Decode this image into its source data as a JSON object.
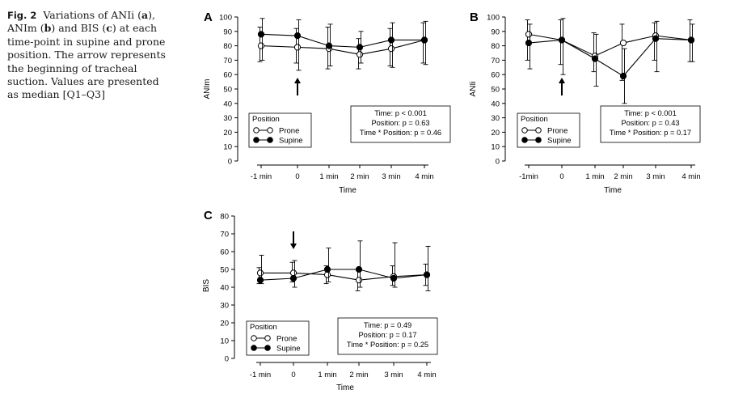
{
  "caption": {
    "fig_label": "Fig. 2",
    "part1": "Variations of ANIi (",
    "a": "a",
    "part2": "), ANIm (",
    "b": "b",
    "part3": ") and BIS (",
    "c": "c",
    "part4": ") at each time-point in supine and prone position. The arrow represents the beginning of tracheal suction. Values are presented as median [Q1–Q3]"
  },
  "chart_data": [
    {
      "type": "line",
      "panel": "A",
      "xlabel": "Time",
      "ylabel": "ANIm",
      "categories": [
        "-1 min",
        "0",
        "1 min",
        "2 min",
        "3 min",
        "4 min"
      ],
      "ylim": [
        0,
        100
      ],
      "yticks": [
        0,
        10,
        20,
        30,
        40,
        50,
        60,
        70,
        80,
        90,
        100
      ],
      "arrow": {
        "category": "0",
        "direction": "up"
      },
      "legend": {
        "title": "Position",
        "position": "bottom-left"
      },
      "stats": [
        "Time: p < 0.001",
        "Position: p = 0.63",
        "Time * Position: p = 0.46"
      ],
      "series": [
        {
          "name": "Prone",
          "marker": "open",
          "values": [
            80,
            79,
            78,
            74,
            78,
            84
          ],
          "q1": [
            69,
            68,
            64,
            64,
            66,
            68
          ],
          "q3": [
            93,
            92,
            93,
            85,
            92,
            96
          ]
        },
        {
          "name": "Supine",
          "marker": "filled",
          "values": [
            88,
            87,
            80,
            79,
            84,
            84
          ],
          "q1": [
            70,
            63,
            66,
            68,
            65,
            67
          ],
          "q3": [
            99,
            98,
            95,
            90,
            96,
            97
          ]
        }
      ]
    },
    {
      "type": "line",
      "panel": "B",
      "xlabel": "Time",
      "ylabel": "ANIi",
      "categories": [
        "-1min",
        "0",
        "1 min",
        "2 min",
        "3 min",
        "4 min"
      ],
      "ylim": [
        0,
        100
      ],
      "yticks": [
        0,
        10,
        20,
        30,
        40,
        50,
        60,
        70,
        80,
        90,
        100
      ],
      "arrow": {
        "category": "0",
        "direction": "up"
      },
      "legend": {
        "title": "Position",
        "position": "bottom-left"
      },
      "stats": [
        "Time: p < 0.001",
        "Position: p = 0.43",
        "Time * Position: p = 0.17"
      ],
      "series": [
        {
          "name": "Prone",
          "marker": "open",
          "values": [
            88,
            84,
            73,
            82,
            87,
            84
          ],
          "q1": [
            70,
            67,
            62,
            56,
            70,
            69
          ],
          "q3": [
            98,
            98,
            89,
            95,
            96,
            98
          ]
        },
        {
          "name": "Supine",
          "marker": "filled",
          "values": [
            82,
            84,
            71,
            59,
            85,
            84
          ],
          "q1": [
            64,
            60,
            52,
            40,
            62,
            69
          ],
          "q3": [
            95,
            99,
            88,
            78,
            97,
            95
          ]
        }
      ]
    },
    {
      "type": "line",
      "panel": "C",
      "xlabel": "Time",
      "ylabel": "BIS",
      "categories": [
        "-1 min",
        "0",
        "1 min",
        "2 min",
        "3 min",
        "4 min"
      ],
      "ylim": [
        0,
        80
      ],
      "yticks": [
        0,
        10,
        20,
        30,
        40,
        50,
        60,
        70,
        80
      ],
      "arrow": {
        "category": "0",
        "direction": "down"
      },
      "legend": {
        "title": "Position",
        "position": "bottom-left"
      },
      "stats": [
        "Time: p = 0.49",
        "Position: p = 0.17",
        "Time * Position: p = 0.25"
      ],
      "series": [
        {
          "name": "Prone",
          "marker": "open",
          "values": [
            48,
            48,
            47,
            44,
            46,
            47
          ],
          "q1": [
            42,
            43,
            42,
            38,
            41,
            41
          ],
          "q3": [
            51,
            54,
            52,
            50,
            52,
            53
          ]
        },
        {
          "name": "Supine",
          "marker": "filled",
          "values": [
            44,
            45,
            50,
            50,
            45,
            47
          ],
          "q1": [
            42,
            40,
            43,
            40,
            40,
            38
          ],
          "q3": [
            58,
            55,
            62,
            66,
            65,
            63
          ]
        }
      ]
    }
  ]
}
